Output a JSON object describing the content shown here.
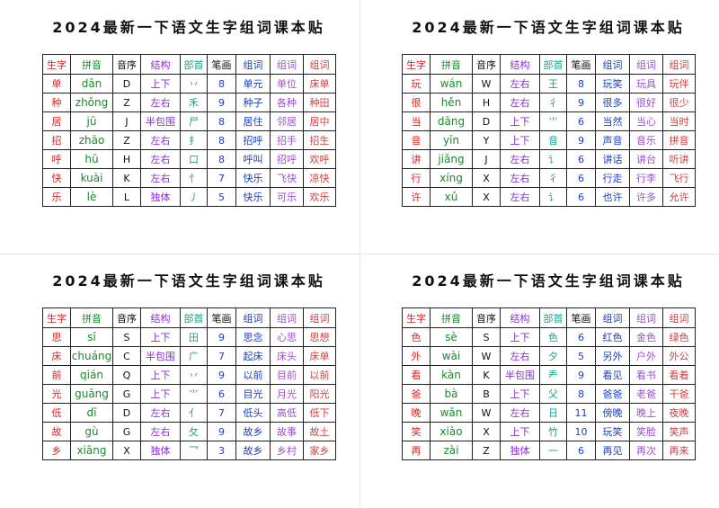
{
  "pages": [
    {
      "title": "2024最新一下语文生字组词课本贴",
      "headers": [
        "生字",
        "拼音",
        "音序",
        "结构",
        "部首",
        "笔画",
        "组词",
        "组词",
        "组词"
      ],
      "rows": [
        [
          "单",
          "dān",
          "D",
          "上下",
          "丷",
          "8",
          "单元",
          "单位",
          "床单"
        ],
        [
          "种",
          "zhǒng",
          "Z",
          "左右",
          "禾",
          "9",
          "种子",
          "各种",
          "种田"
        ],
        [
          "居",
          "jū",
          "J",
          "半包围",
          "尸",
          "8",
          "居住",
          "邻居",
          "居中"
        ],
        [
          "招",
          "zhāo",
          "Z",
          "左右",
          "扌",
          "8",
          "招呼",
          "招手",
          "招生"
        ],
        [
          "呼",
          "hū",
          "H",
          "左右",
          "口",
          "8",
          "呼叫",
          "招呼",
          "欢呼"
        ],
        [
          "快",
          "kuài",
          "K",
          "左右",
          "忄",
          "7",
          "快乐",
          "飞快",
          "凉快"
        ],
        [
          "乐",
          "lè",
          "L",
          "独体",
          "丿",
          "5",
          "快乐",
          "可乐",
          "欢乐"
        ]
      ]
    },
    {
      "title": "2024最新一下语文生字组词课本贴",
      "headers": [
        "生字",
        "拼音",
        "音序",
        "结构",
        "部首",
        "笔画",
        "组词",
        "组词",
        "组词"
      ],
      "rows": [
        [
          "玩",
          "wán",
          "W",
          "左右",
          "王",
          "8",
          "玩笑",
          "玩具",
          "玩伴"
        ],
        [
          "很",
          "hěn",
          "H",
          "左右",
          "彳",
          "9",
          "很多",
          "很好",
          "很少"
        ],
        [
          "当",
          "dāng",
          "D",
          "上下",
          "⺌",
          "6",
          "当然",
          "当心",
          "当时"
        ],
        [
          "音",
          "yīn",
          "Y",
          "上下",
          "音",
          "9",
          "声音",
          "音乐",
          "拼音"
        ],
        [
          "讲",
          "jiǎng",
          "J",
          "左右",
          "讠",
          "6",
          "讲话",
          "讲台",
          "听讲"
        ],
        [
          "行",
          "xíng",
          "X",
          "左右",
          "彳",
          "6",
          "行走",
          "行李",
          "飞行"
        ],
        [
          "许",
          "xǔ",
          "X",
          "左右",
          "讠",
          "6",
          "也许",
          "许多",
          "允许"
        ]
      ]
    },
    {
      "title": "2024最新一下语文生字组词课本贴",
      "headers": [
        "生字",
        "拼音",
        "音序",
        "结构",
        "部首",
        "笔画",
        "组词",
        "组词",
        "组词"
      ],
      "rows": [
        [
          "思",
          "sī",
          "S",
          "上下",
          "田",
          "9",
          "思念",
          "心思",
          "思想"
        ],
        [
          "床",
          "chuáng",
          "C",
          "半包围",
          "广",
          "7",
          "起床",
          "床头",
          "床单"
        ],
        [
          "前",
          "qián",
          "Q",
          "上下",
          "丷",
          "9",
          "以前",
          "目前",
          "以前"
        ],
        [
          "光",
          "guāng",
          "G",
          "上下",
          "⺌",
          "6",
          "目光",
          "月光",
          "阳光"
        ],
        [
          "低",
          "dī",
          "D",
          "左右",
          "亻",
          "7",
          "低头",
          "高低",
          "低下"
        ],
        [
          "故",
          "gù",
          "G",
          "左右",
          "攵",
          "9",
          "故乡",
          "故事",
          "故土"
        ],
        [
          "乡",
          "xiāng",
          "X",
          "独体",
          "乛",
          "3",
          "故乡",
          "乡村",
          "家乡"
        ]
      ]
    },
    {
      "title": "2024最新一下语文生字组词课本贴",
      "headers": [
        "生字",
        "拼音",
        "音序",
        "结构",
        "部首",
        "笔画",
        "组词",
        "组词",
        "组词"
      ],
      "rows": [
        [
          "色",
          "sè",
          "S",
          "上下",
          "色",
          "6",
          "红色",
          "金色",
          "绿色"
        ],
        [
          "外",
          "wài",
          "W",
          "左右",
          "夕",
          "5",
          "另外",
          "户外",
          "外公"
        ],
        [
          "看",
          "kàn",
          "K",
          "半包围",
          "龵",
          "9",
          "看见",
          "看书",
          "看着"
        ],
        [
          "爸",
          "bà",
          "B",
          "上下",
          "父",
          "8",
          "爸爸",
          "老爸",
          "干爸"
        ],
        [
          "晚",
          "wǎn",
          "W",
          "左右",
          "日",
          "11",
          "傍晚",
          "晚上",
          "夜晚"
        ],
        [
          "笑",
          "xiào",
          "X",
          "上下",
          "竹",
          "10",
          "玩笑",
          "笑脸",
          "笑声"
        ],
        [
          "再",
          "zài",
          "Z",
          "独体",
          "一",
          "6",
          "再见",
          "再次",
          "再来"
        ]
      ]
    }
  ]
}
